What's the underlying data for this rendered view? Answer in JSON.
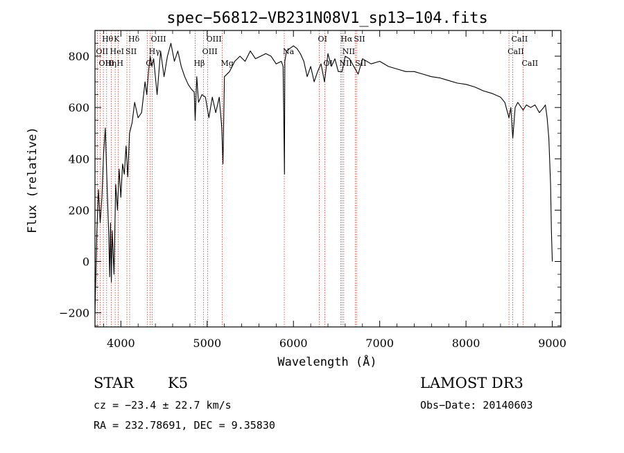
{
  "chart_data": {
    "type": "line",
    "title": "spec−56812−VB231N08V1_sp13−104.fits",
    "xlabel": "Wavelength (Å)",
    "ylabel": "Flux (relative)",
    "xlim": [
      3700,
      9100
    ],
    "ylim": [
      -255,
      900
    ],
    "x_ticks": [
      4000,
      5000,
      6000,
      7000,
      8000,
      9000
    ],
    "x_tick_labels": [
      "4000",
      "5000",
      "6000",
      "7000",
      "8000",
      "9000"
    ],
    "y_ticks": [
      -200,
      0,
      200,
      400,
      600,
      800
    ],
    "y_tick_labels": [
      "−200",
      "0",
      "200",
      "400",
      "600",
      "800"
    ],
    "x_minor_step": 200,
    "y_minor_step": 50,
    "series": [
      {
        "name": "flux",
        "x": [
          3700,
          3720,
          3740,
          3760,
          3780,
          3800,
          3820,
          3840,
          3860,
          3870,
          3880,
          3890,
          3900,
          3920,
          3940,
          3960,
          3980,
          4000,
          4020,
          4040,
          4060,
          4080,
          4100,
          4130,
          4160,
          4200,
          4240,
          4280,
          4300,
          4320,
          4340,
          4360,
          4380,
          4420,
          4460,
          4500,
          4540,
          4580,
          4620,
          4660,
          4700,
          4740,
          4780,
          4820,
          4850,
          4861,
          4880,
          4900,
          4940,
          4980,
          5020,
          5060,
          5100,
          5140,
          5170,
          5183,
          5200,
          5260,
          5320,
          5380,
          5440,
          5500,
          5560,
          5620,
          5680,
          5740,
          5800,
          5860,
          5880,
          5890,
          5896,
          5900,
          5920,
          5960,
          6000,
          6040,
          6080,
          6120,
          6160,
          6200,
          6240,
          6280,
          6320,
          6360,
          6400,
          6440,
          6480,
          6520,
          6563,
          6600,
          6650,
          6700,
          6750,
          6800,
          6900,
          7000,
          7100,
          7200,
          7300,
          7400,
          7500,
          7600,
          7700,
          7800,
          7900,
          8000,
          8100,
          8200,
          8300,
          8400,
          8450,
          8498,
          8520,
          8542,
          8570,
          8600,
          8662,
          8700,
          8750,
          8800,
          8850,
          8900,
          8920,
          8940,
          8960,
          8980,
          8990,
          9000
        ],
        "y": [
          -200,
          100,
          280,
          150,
          250,
          420,
          520,
          300,
          100,
          -60,
          150,
          -80,
          120,
          -50,
          300,
          200,
          360,
          250,
          380,
          340,
          450,
          330,
          500,
          540,
          620,
          560,
          580,
          700,
          650,
          740,
          800,
          760,
          790,
          650,
          820,
          720,
          800,
          850,
          780,
          820,
          760,
          720,
          690,
          670,
          660,
          550,
          720,
          620,
          650,
          640,
          560,
          640,
          580,
          640,
          520,
          380,
          720,
          740,
          780,
          800,
          780,
          820,
          790,
          800,
          810,
          800,
          770,
          780,
          760,
          520,
          340,
          780,
          820,
          830,
          840,
          830,
          810,
          780,
          720,
          760,
          700,
          740,
          770,
          700,
          810,
          760,
          790,
          740,
          740,
          800,
          790,
          760,
          730,
          790,
          770,
          780,
          760,
          750,
          740,
          740,
          730,
          720,
          715,
          705,
          695,
          690,
          680,
          665,
          655,
          640,
          620,
          560,
          600,
          480,
          600,
          620,
          590,
          610,
          600,
          610,
          580,
          600,
          610,
          560,
          480,
          300,
          120,
          0
        ]
      }
    ],
    "spectral_lines": [
      {
        "label": "Hθ",
        "x": 3797,
        "row": 0
      },
      {
        "label": "OII",
        "x": 3727,
        "row": 1
      },
      {
        "label": "OIII",
        "x": 3760,
        "row": 2
      },
      {
        "label": "K",
        "x": 3934,
        "row": 0
      },
      {
        "label": "HeI",
        "x": 3889,
        "row": 1
      },
      {
        "label": "Hη",
        "x": 3835,
        "row": 2
      },
      {
        "label": "H",
        "x": 3968,
        "row": 2
      },
      {
        "label": "SII",
        "x": 4070,
        "row": 1
      },
      {
        "label": "Hδ",
        "x": 4102,
        "row": 0
      },
      {
        "label": "OIII",
        "x": 4363,
        "row": 0
      },
      {
        "label": "Hγ",
        "x": 4340,
        "row": 1
      },
      {
        "label": "G",
        "x": 4305,
        "row": 2
      },
      {
        "label": "Hβ",
        "x": 4861,
        "row": 2
      },
      {
        "label": "OIII",
        "x": 5007,
        "row": 0
      },
      {
        "label": "OIII",
        "x": 4959,
        "row": 1
      },
      {
        "label": "Mg",
        "x": 5175,
        "row": 2
      },
      {
        "label": "Na",
        "x": 5894,
        "row": 1
      },
      {
        "label": "OI",
        "x": 6300,
        "row": 0
      },
      {
        "label": "OI",
        "x": 6364,
        "row": 2
      },
      {
        "label": "Hα",
        "x": 6563,
        "row": 0
      },
      {
        "label": "NII",
        "x": 6583,
        "row": 1
      },
      {
        "label": "NII",
        "x": 6548,
        "row": 2
      },
      {
        "label": "SII",
        "x": 6716,
        "row": 0
      },
      {
        "label": "SII",
        "x": 6731,
        "row": 2
      },
      {
        "label": "CaII",
        "x": 8542,
        "row": 0
      },
      {
        "label": "CaII",
        "x": 8498,
        "row": 1
      },
      {
        "label": "CaII",
        "x": 8662,
        "row": 2
      }
    ]
  },
  "info": {
    "object_class": "STAR",
    "subclass": "K5",
    "survey": "LAMOST DR3",
    "redshift": "cz = −23.4 ± 22.7 km/s",
    "obs_date": "Obs−Date: 20140603",
    "coordinates": "RA = 232.78691, DEC =   9.35830"
  }
}
